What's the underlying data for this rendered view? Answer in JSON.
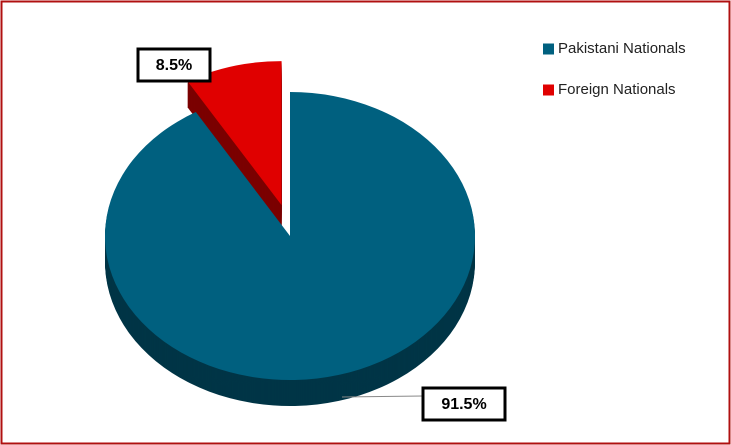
{
  "chart_data": {
    "type": "pie",
    "categories": [
      "Pakistani Nationals",
      "Foreign Nationals"
    ],
    "values": [
      91.5,
      8.5
    ],
    "value_labels": [
      "91.5%",
      "8.5%"
    ],
    "colors": [
      "#00607f",
      "#e00000"
    ],
    "legend": "top-right"
  }
}
